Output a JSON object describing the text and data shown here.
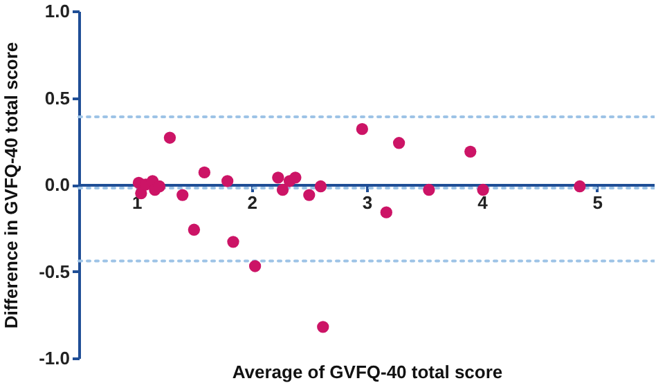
{
  "chart_data": {
    "type": "scatter",
    "xlabel": "Average of GVFQ-40 total score",
    "ylabel": "Difference in GVFQ-40 total score",
    "x": [
      1.02,
      1.04,
      1.08,
      1.14,
      1.16,
      1.2,
      1.29,
      1.4,
      1.59,
      1.5,
      1.79,
      1.84,
      2.03,
      2.23,
      2.27,
      2.33,
      2.38,
      2.5,
      2.6,
      2.62,
      2.96,
      3.17,
      3.28,
      3.54,
      3.9,
      4.01,
      4.85
    ],
    "series": [
      {
        "color": "#cc1466",
        "values": [
          0.01,
          -0.05,
          0.0,
          0.02,
          -0.03,
          -0.01,
          0.27,
          -0.06,
          0.07,
          -0.26,
          0.02,
          -0.33,
          -0.47,
          0.04,
          -0.03,
          0.02,
          0.04,
          -0.06,
          -0.01,
          -0.82,
          0.32,
          -0.16,
          0.24,
          -0.03,
          0.19,
          -0.03,
          -0.01
        ]
      }
    ],
    "xlim": [
      0.5,
      5.5
    ],
    "xticks": [
      1,
      2,
      3,
      4,
      5
    ],
    "ylim": [
      -1.0,
      1.0
    ],
    "yticks": [
      {
        "value": -1.0,
        "label": "-1.0"
      },
      {
        "value": -0.5,
        "label": "-0.5"
      },
      {
        "value": 0,
        "label": "0.0"
      },
      {
        "value": 0.5,
        "label": "0.5"
      },
      {
        "value": 1.0,
        "label": "1.0"
      }
    ],
    "ref_lines": [
      {
        "axis": "y",
        "value": 0.39,
        "color": "#9dc3e6",
        "line_style": "dotted"
      },
      {
        "axis": "y",
        "value": -0.02,
        "color": "#9dc3e6",
        "line_style": "dotted"
      },
      {
        "axis": "y",
        "value": -0.44,
        "color": "#9dc3e6",
        "line_style": "dotted"
      }
    ],
    "marker": "circle",
    "grid": false
  }
}
